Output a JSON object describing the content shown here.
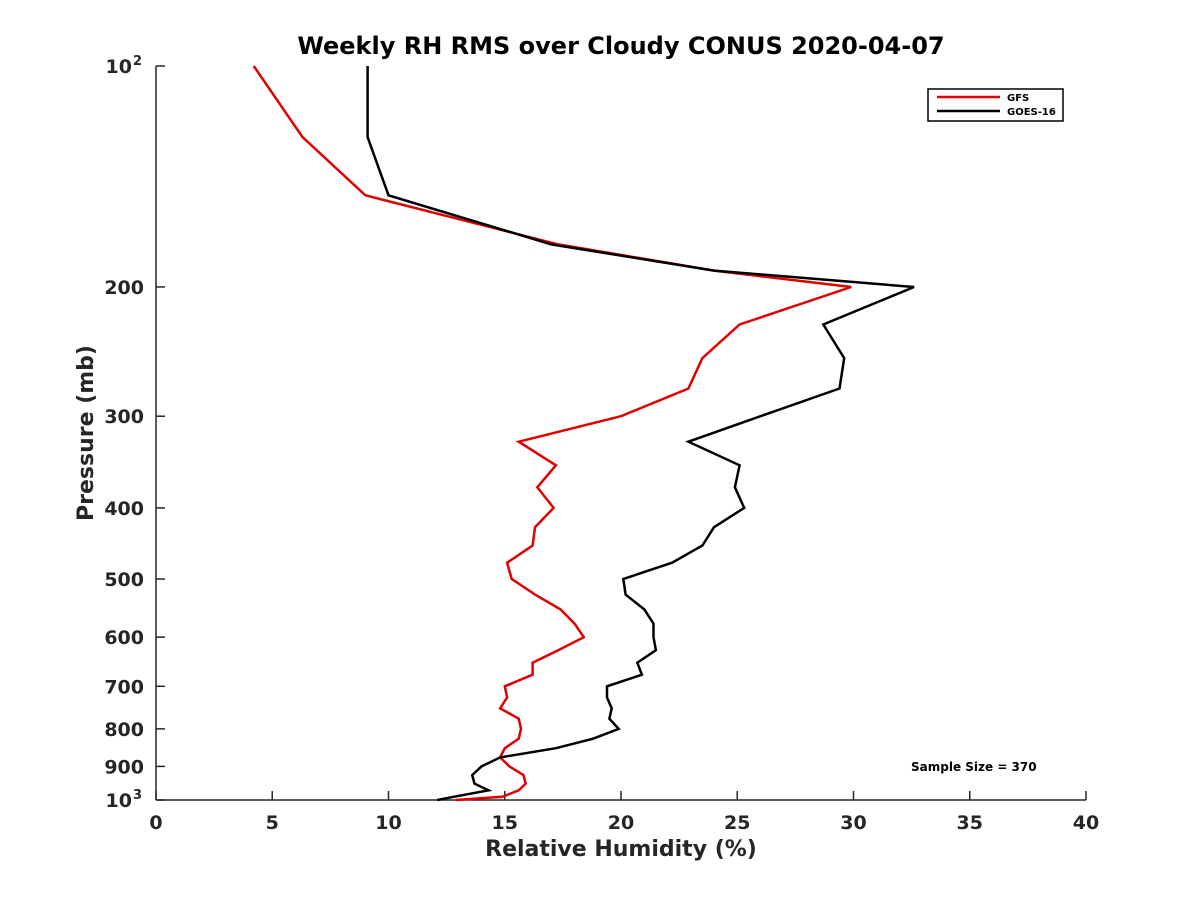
{
  "chart_data": {
    "type": "line",
    "title": "Weekly RH RMS over Cloudy CONUS 2020-04-07",
    "xlabel": "Relative Humidity (%)",
    "ylabel": "Pressure (mb)",
    "xlim": [
      0,
      40
    ],
    "ylim": [
      100,
      1000
    ],
    "yscale": "log",
    "y_reversed": true,
    "x_ticks": [
      "0",
      "5",
      "10",
      "15",
      "20",
      "25",
      "30",
      "35",
      "40"
    ],
    "y_ticks": [
      {
        "value": 100,
        "base": "10",
        "exp": "2"
      },
      {
        "value": 200,
        "label": "200"
      },
      {
        "value": 300,
        "label": "300"
      },
      {
        "value": 400,
        "label": "400"
      },
      {
        "value": 500,
        "label": "500"
      },
      {
        "value": 600,
        "label": "600"
      },
      {
        "value": 700,
        "label": "700"
      },
      {
        "value": 800,
        "label": "800"
      },
      {
        "value": 900,
        "label": "900"
      },
      {
        "value": 1000,
        "base": "10",
        "exp": "3"
      }
    ],
    "legend_position": "top-right",
    "annotation": "Sample Size = 370",
    "series": [
      {
        "name": "GFS",
        "color": "#e00000",
        "points": [
          [
            4.2,
            100
          ],
          [
            6.3,
            125
          ],
          [
            9.0,
            150
          ],
          [
            17.3,
            175
          ],
          [
            24.0,
            190
          ],
          [
            29.9,
            200
          ],
          [
            25.1,
            225
          ],
          [
            23.5,
            250
          ],
          [
            22.9,
            275
          ],
          [
            20.0,
            300
          ],
          [
            15.6,
            325
          ],
          [
            17.2,
            350
          ],
          [
            16.4,
            375
          ],
          [
            17.1,
            400
          ],
          [
            16.3,
            425
          ],
          [
            16.2,
            450
          ],
          [
            15.1,
            475
          ],
          [
            15.3,
            500
          ],
          [
            16.3,
            525
          ],
          [
            17.4,
            550
          ],
          [
            18.0,
            575
          ],
          [
            18.4,
            600
          ],
          [
            17.3,
            625
          ],
          [
            16.2,
            650
          ],
          [
            16.2,
            675
          ],
          [
            15.0,
            700
          ],
          [
            15.1,
            725
          ],
          [
            14.8,
            750
          ],
          [
            15.6,
            775
          ],
          [
            15.7,
            800
          ],
          [
            15.6,
            825
          ],
          [
            15.0,
            850
          ],
          [
            14.8,
            875
          ],
          [
            15.2,
            900
          ],
          [
            15.8,
            925
          ],
          [
            15.9,
            950
          ],
          [
            15.6,
            970
          ],
          [
            14.9,
            990
          ],
          [
            12.9,
            1000
          ]
        ]
      },
      {
        "name": "GOES-16",
        "color": "#000000",
        "points": [
          [
            9.1,
            100
          ],
          [
            9.1,
            125
          ],
          [
            10.0,
            150
          ],
          [
            17.0,
            175
          ],
          [
            24.0,
            190
          ],
          [
            32.6,
            200
          ],
          [
            28.7,
            225
          ],
          [
            29.6,
            250
          ],
          [
            29.4,
            275
          ],
          [
            26.0,
            300
          ],
          [
            22.9,
            325
          ],
          [
            25.1,
            350
          ],
          [
            24.9,
            375
          ],
          [
            25.3,
            400
          ],
          [
            24.0,
            425
          ],
          [
            23.5,
            450
          ],
          [
            22.2,
            475
          ],
          [
            20.1,
            500
          ],
          [
            20.2,
            525
          ],
          [
            21.0,
            550
          ],
          [
            21.4,
            575
          ],
          [
            21.4,
            600
          ],
          [
            21.5,
            625
          ],
          [
            20.7,
            650
          ],
          [
            20.9,
            675
          ],
          [
            19.4,
            700
          ],
          [
            19.4,
            725
          ],
          [
            19.6,
            750
          ],
          [
            19.5,
            775
          ],
          [
            19.9,
            800
          ],
          [
            18.8,
            825
          ],
          [
            17.2,
            850
          ],
          [
            14.8,
            875
          ],
          [
            14.0,
            900
          ],
          [
            13.6,
            925
          ],
          [
            13.7,
            950
          ],
          [
            14.3,
            970
          ],
          [
            12.8,
            990
          ],
          [
            12.1,
            1000
          ]
        ]
      }
    ]
  }
}
